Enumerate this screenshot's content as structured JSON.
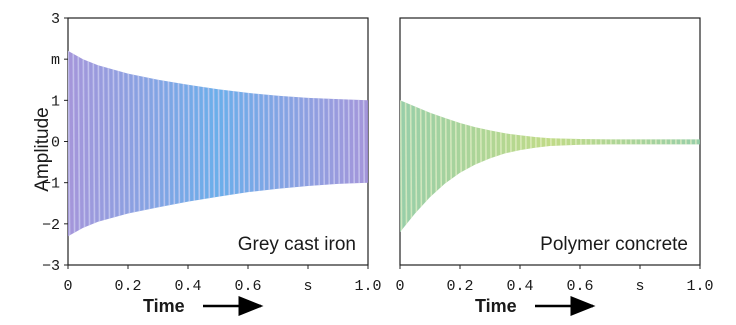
{
  "chart_data": [
    {
      "type": "area",
      "panel_label": "Grey cast iron",
      "colors": {
        "fill_a": "#9b8ad6",
        "fill_b": "#5aa6e8",
        "stripe": "#cfd0f2"
      },
      "xlim": [
        0,
        1.0
      ],
      "ylim": [
        -3,
        3
      ],
      "x_ticks": [
        "0",
        "0.2",
        "0.4",
        "0.6",
        "s",
        "1.0"
      ],
      "y_ticks": [
        "3",
        "m",
        "1",
        "0",
        "−1",
        "−2",
        "−3"
      ],
      "xlabel": "Time",
      "ylabel": "Amplitude",
      "envelope": {
        "x": [
          0,
          0.05,
          0.1,
          0.2,
          0.3,
          0.4,
          0.5,
          0.6,
          0.7,
          0.8,
          0.9,
          1.0
        ],
        "upper": [
          2.2,
          2.0,
          1.85,
          1.65,
          1.5,
          1.38,
          1.27,
          1.18,
          1.11,
          1.06,
          1.03,
          1.0
        ],
        "lower": [
          -2.3,
          -2.1,
          -1.95,
          -1.75,
          -1.6,
          -1.46,
          -1.34,
          -1.23,
          -1.15,
          -1.08,
          -1.03,
          -1.0
        ]
      }
    },
    {
      "type": "area",
      "panel_label": "Polymer concrete",
      "colors": {
        "fill_a": "#8cc9a0",
        "fill_b": "#b9d77a",
        "stripe": "#e6f0c8"
      },
      "xlim": [
        0,
        1.0
      ],
      "ylim": [
        -3,
        3
      ],
      "x_ticks": [
        "0",
        "0.2",
        "0.4",
        "0.6",
        "s",
        "1.0"
      ],
      "xlabel": "Time",
      "envelope": {
        "x": [
          0,
          0.05,
          0.1,
          0.15,
          0.2,
          0.25,
          0.3,
          0.35,
          0.4,
          0.45,
          0.5,
          0.6,
          0.7,
          0.8,
          0.9,
          1.0
        ],
        "upper": [
          1.0,
          0.85,
          0.7,
          0.57,
          0.45,
          0.35,
          0.27,
          0.2,
          0.15,
          0.11,
          0.08,
          0.06,
          0.05,
          0.05,
          0.05,
          0.05
        ],
        "lower": [
          -2.2,
          -1.75,
          -1.35,
          -1.02,
          -0.76,
          -0.56,
          -0.41,
          -0.29,
          -0.21,
          -0.15,
          -0.11,
          -0.08,
          -0.07,
          -0.07,
          -0.07,
          -0.07
        ]
      }
    }
  ]
}
